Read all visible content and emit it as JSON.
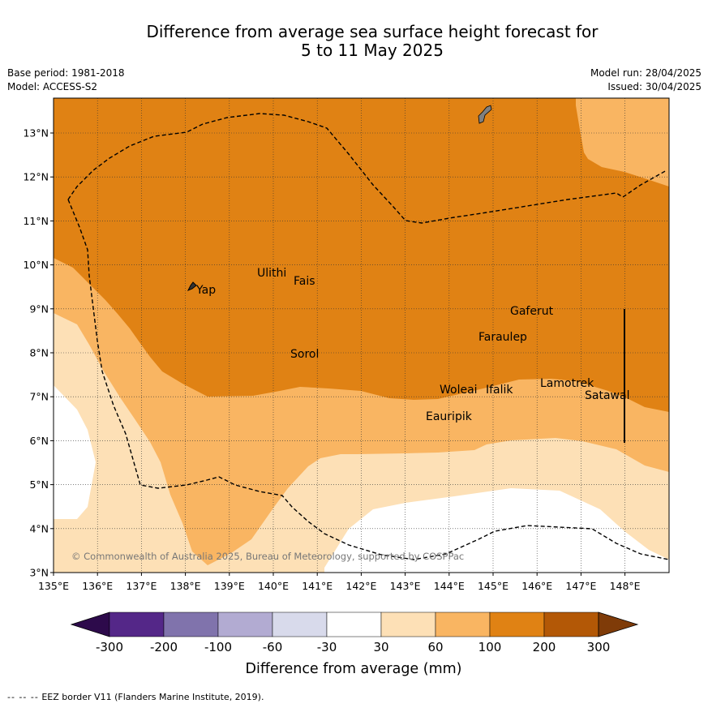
{
  "title": {
    "line1": "Difference from average sea surface height forecast for",
    "line2": "5 to 11 May 2025"
  },
  "meta": {
    "base_period": "Base period: 1981-2018",
    "model": "Model: ACCESS-S2",
    "model_run": "Model run: 28/04/2025",
    "issued": "Issued: 30/04/2025"
  },
  "map": {
    "lat_labels": [
      "13°N",
      "12°N",
      "11°N",
      "10°N",
      "9°N",
      "8°N",
      "7°N",
      "6°N",
      "5°N",
      "4°N",
      "3°N"
    ],
    "lon_labels": [
      "135°E",
      "136°E",
      "137°E",
      "138°E",
      "139°E",
      "140°E",
      "141°E",
      "142°E",
      "143°E",
      "144°E",
      "145°E",
      "146°E",
      "147°E",
      "148°E"
    ],
    "places": [
      "Yap",
      "Ulithi",
      "Fais",
      "Gaferut",
      "Faraulep",
      "Sorol",
      "Woleai",
      "Ifalik",
      "Lamotrek",
      "Satawal",
      "Eauripik"
    ],
    "copyright": "© Commonwealth of Australia 2025, Bureau of Meteorology, supported by COSPPac",
    "colors": {
      "band_30_60": "#fde0b6",
      "band_60_100": "#f9b562",
      "band_100_200": "#e08214",
      "neutral": "#ffffff",
      "eez_line": "#000000",
      "land": "#808080"
    }
  },
  "colorbar": {
    "ticks": [
      "-300",
      "-200",
      "-100",
      "-60",
      "-30",
      "30",
      "60",
      "100",
      "200",
      "300"
    ],
    "colors": [
      "#2d0a4b",
      "#542788",
      "#8073ac",
      "#b2abd2",
      "#d8daeb",
      "#ffffff",
      "#fde0b6",
      "#f9b562",
      "#e08214",
      "#b35806",
      "#7f3b08"
    ],
    "label": "Difference from average (mm)"
  },
  "footer": {
    "legend_dashes": "-- -- --",
    "legend_text": "EEZ border V11 (Flanders Marine Institute, 2019)."
  }
}
